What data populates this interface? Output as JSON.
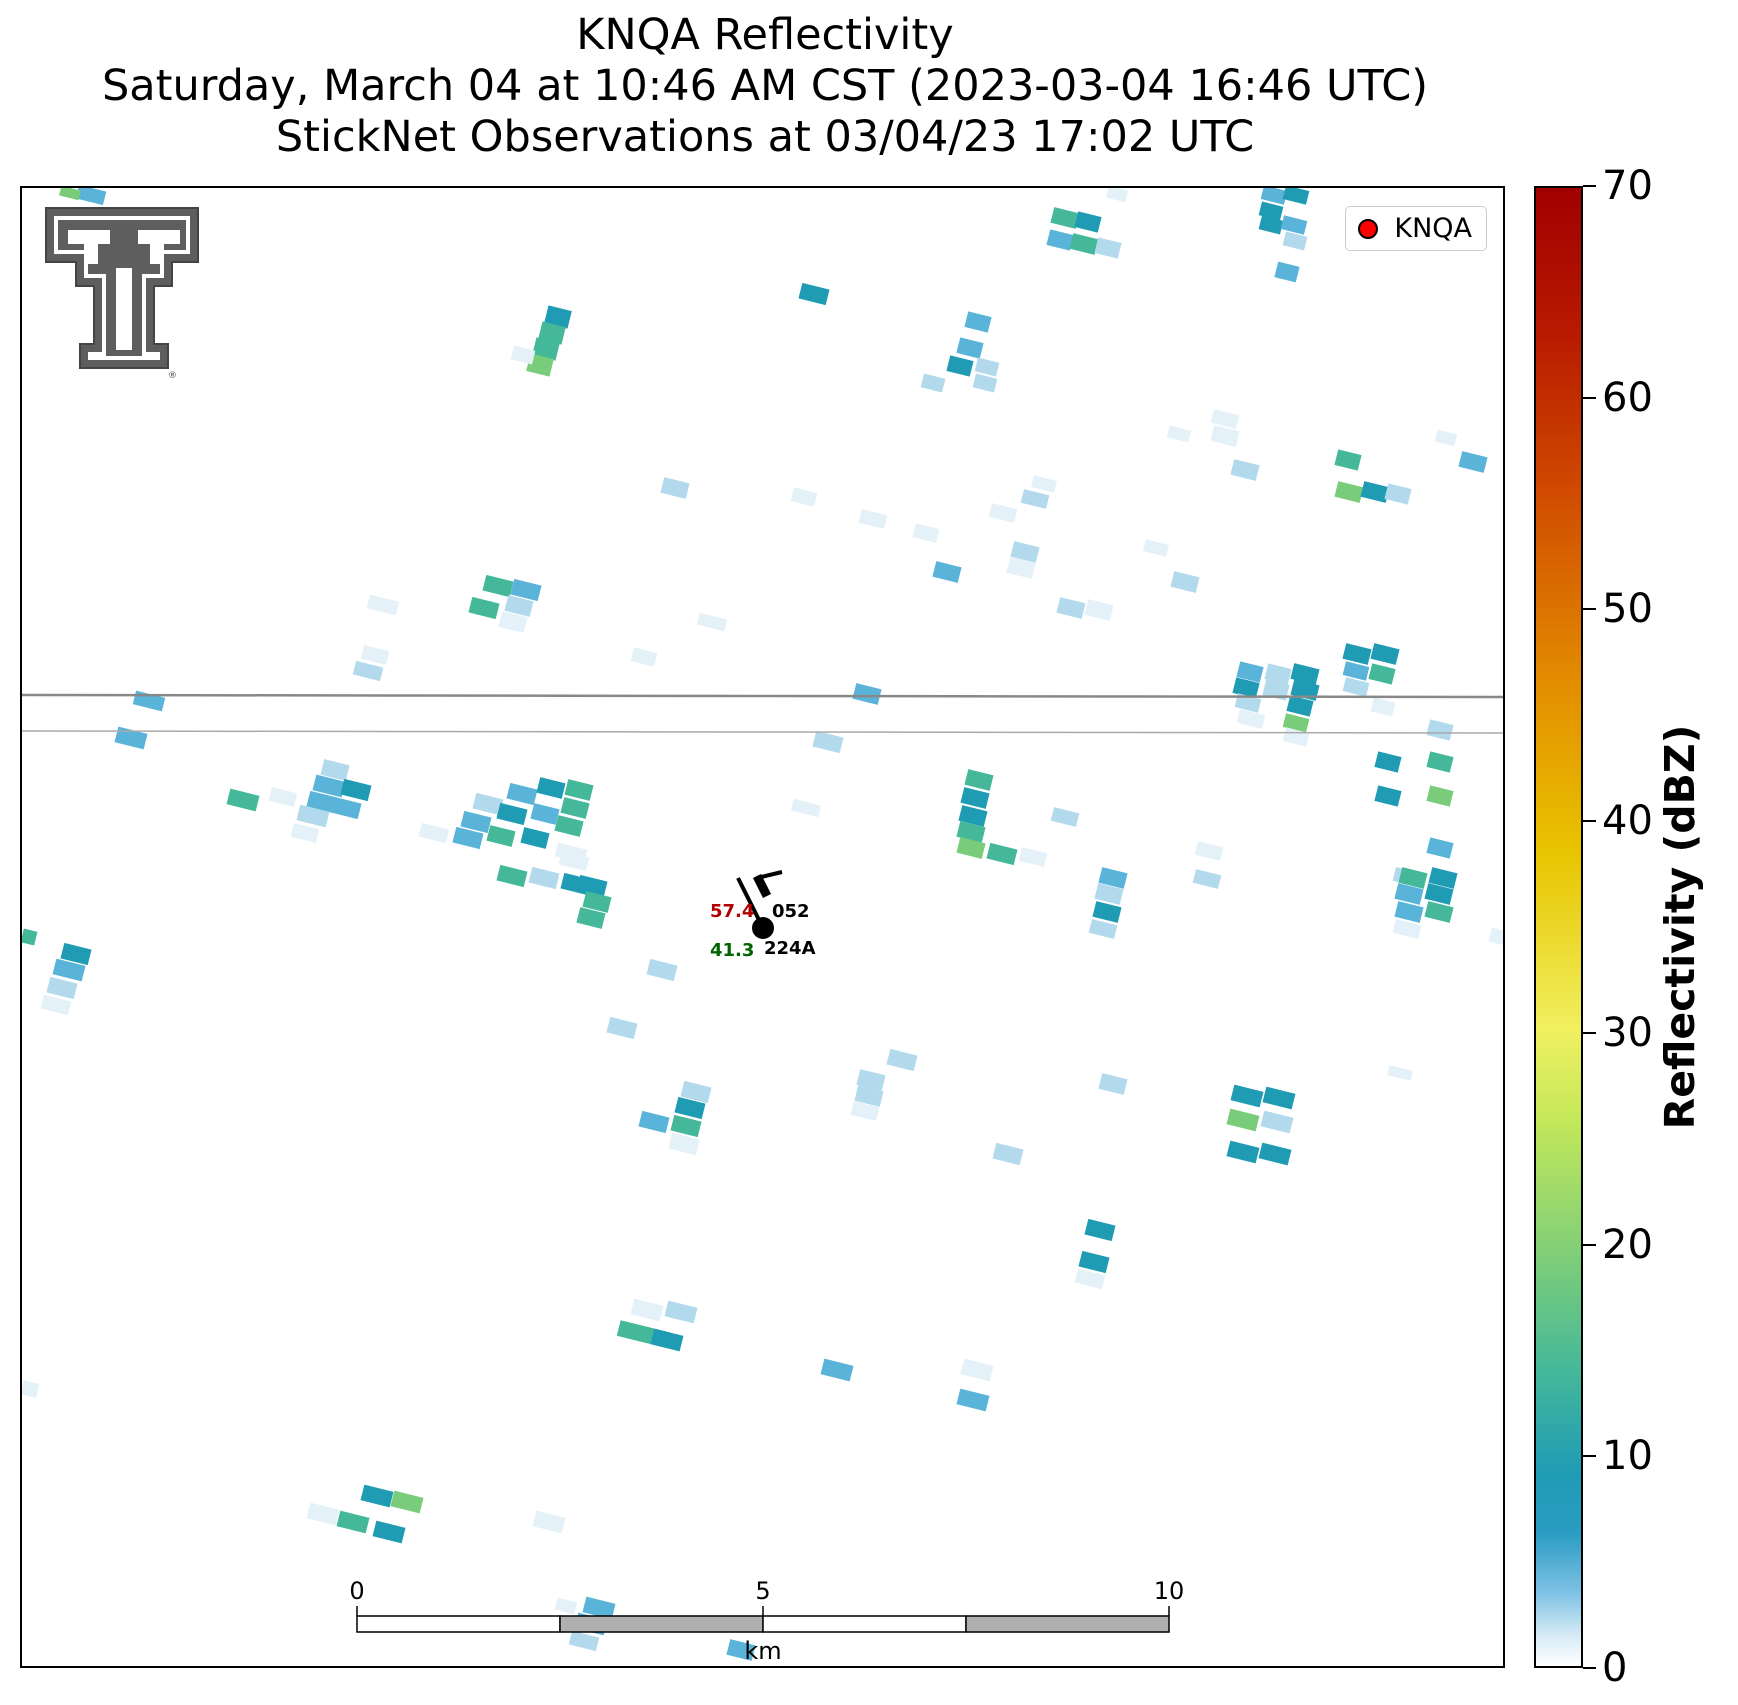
{
  "title": {
    "line1": "KNQA Reflectivity",
    "line2": "Saturday, March 04 at 10:46 AM CST (2023-03-04 16:46 UTC)",
    "line3": "StickNet Observations at 03/04/23 17:02 UTC"
  },
  "legend": {
    "label": "KNQA",
    "marker_color": "#ff0000"
  },
  "logo": {
    "icon": "double-t-logo-icon",
    "text": "TT"
  },
  "station": {
    "temperature": "57.4",
    "dewpoint": "41.3",
    "upper_id": "052",
    "lower_id": "224A",
    "temperature_color": "#b00000",
    "dewpoint_color": "#006400"
  },
  "scale_bar": {
    "unit": "km",
    "ticks": [
      "0",
      "5",
      "10"
    ]
  },
  "colorbar": {
    "label": "Reflectivity (dBZ)",
    "min": 0,
    "max": 70,
    "ticks": [
      "0",
      "10",
      "20",
      "30",
      "40",
      "50",
      "60",
      "70"
    ],
    "colors": [
      "#ffffff",
      "#7dc1e4",
      "#1f9bb4",
      "#79cc7a",
      "#f0f060",
      "#e8c400",
      "#e28a00",
      "#a00000"
    ]
  },
  "reflectivity_palette": {
    "very_light": "#e4f1f8",
    "light": "#b2d9ec",
    "medium": "#5ab3d8",
    "teal": "#1f9bb4",
    "green_teal": "#45b89a",
    "green": "#79cc7a"
  }
}
